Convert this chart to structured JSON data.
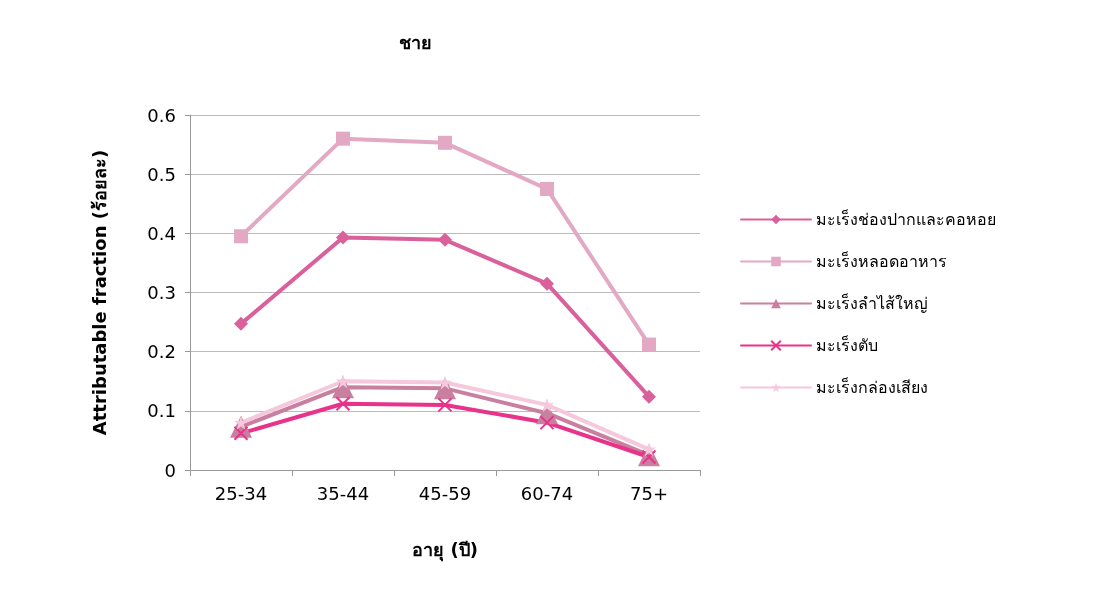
{
  "chart_data": {
    "type": "line",
    "title": "ชาย",
    "xlabel": "อายุ (ปี)",
    "ylabel": "Attributable fraction (ร้อยละ)",
    "categories": [
      "25-34",
      "35-44",
      "45-59",
      "60-74",
      "75+"
    ],
    "series": [
      {
        "name": "มะเร็งช่องปากและคอหอย",
        "color": "#d9609a",
        "marker": "diamond",
        "values": [
          0.247,
          0.393,
          0.389,
          0.315,
          0.124
        ]
      },
      {
        "name": "มะเร็งหลอดอาหาร",
        "color": "#e3a8c3",
        "marker": "square",
        "values": [
          0.395,
          0.56,
          0.553,
          0.475,
          0.212
        ]
      },
      {
        "name": "มะเร็งลำไส้ใหญ่",
        "color": "#c97fa0",
        "marker": "triangle",
        "values": [
          0.073,
          0.14,
          0.138,
          0.096,
          0.025
        ]
      },
      {
        "name": "มะเร็งตับ",
        "color": "#e8338a",
        "marker": "cross",
        "values": [
          0.062,
          0.112,
          0.11,
          0.08,
          0.022
        ]
      },
      {
        "name": "มะเร็งกล่องเสียง",
        "color": "#f5c8dc",
        "marker": "star",
        "values": [
          0.08,
          0.15,
          0.148,
          0.11,
          0.035
        ]
      }
    ],
    "ylim": [
      0,
      0.6
    ],
    "yticks": [
      0,
      0.1,
      0.2,
      0.3,
      0.4,
      0.5,
      0.6
    ],
    "grid": "y",
    "legend": "right",
    "line_style": "solid"
  }
}
